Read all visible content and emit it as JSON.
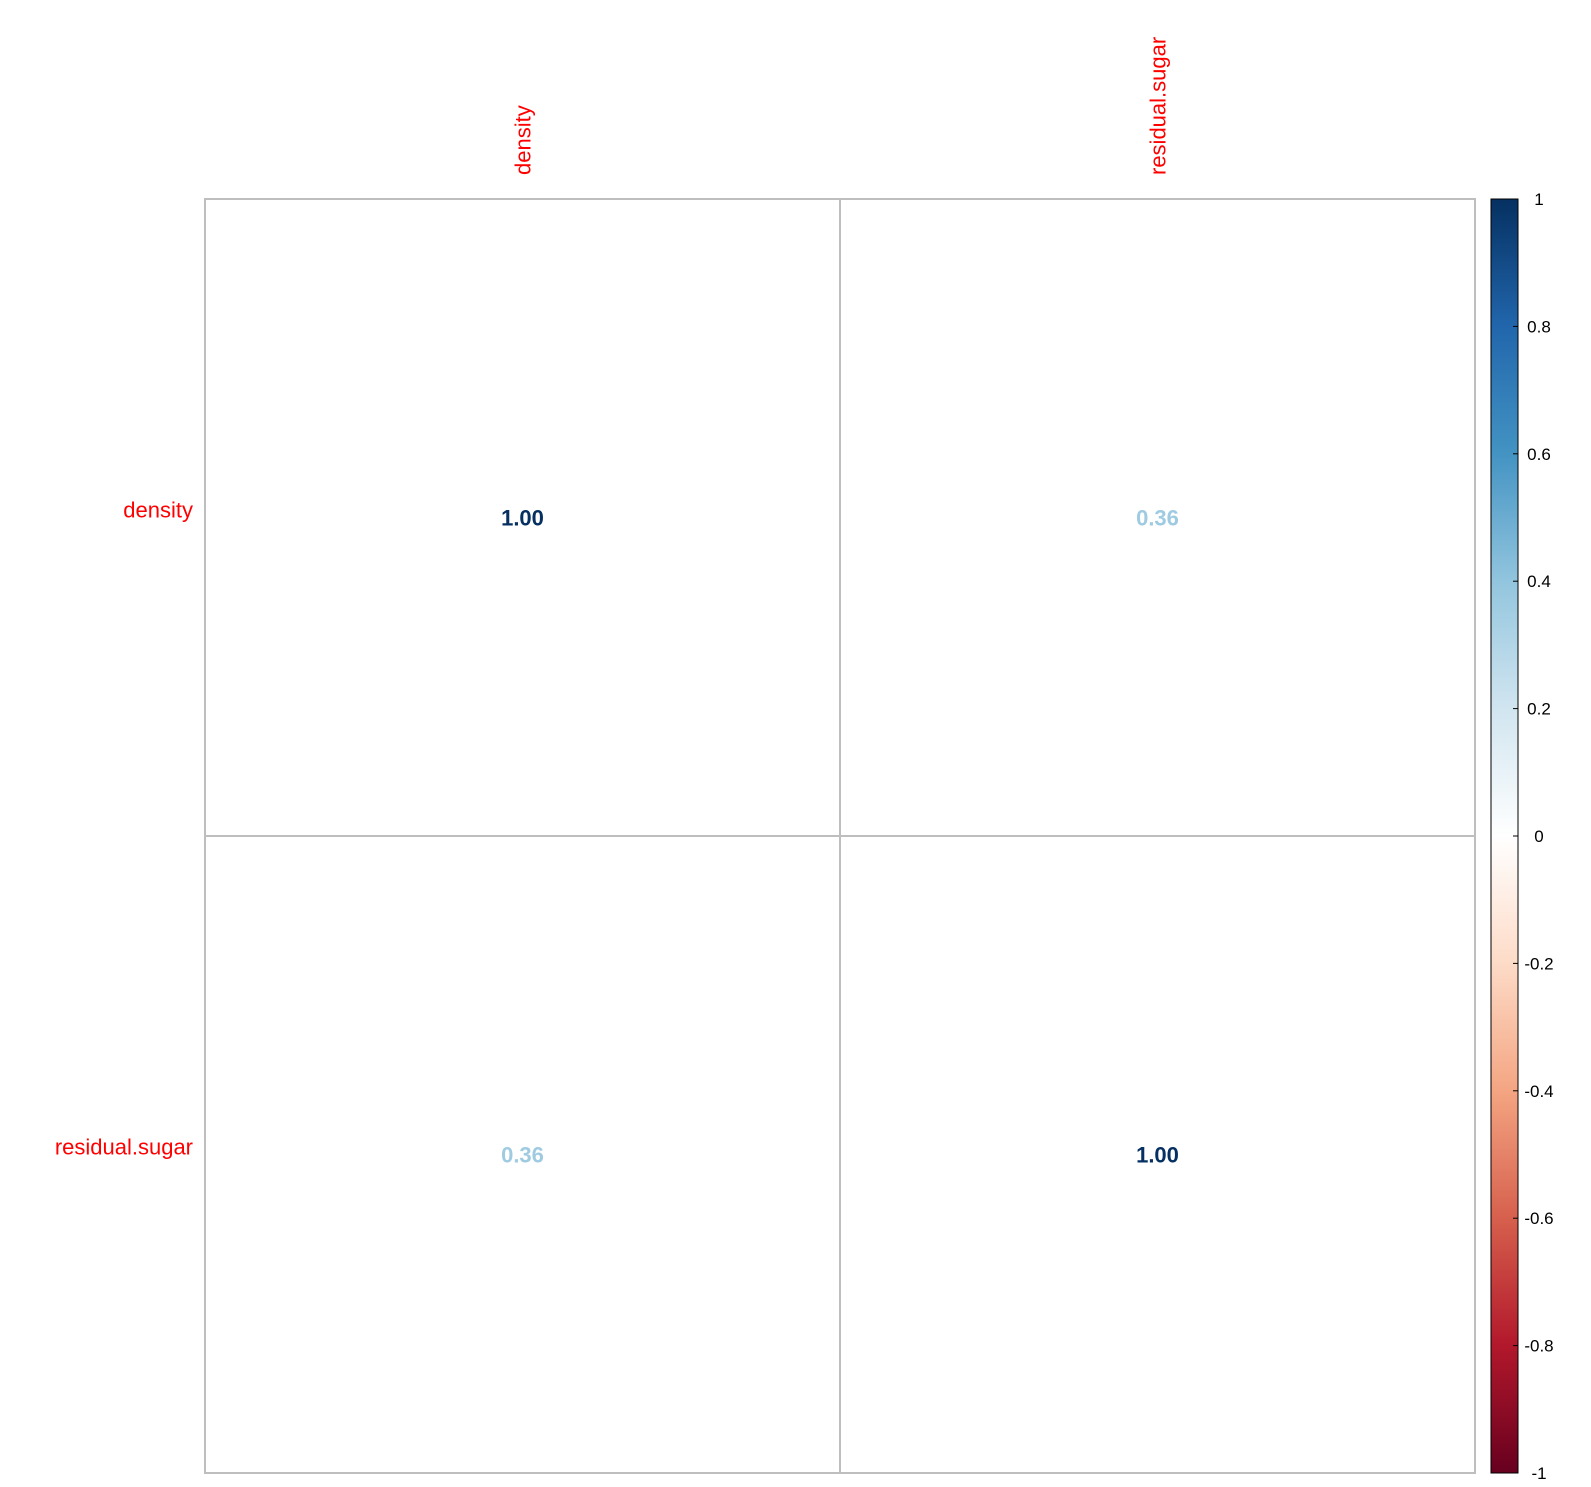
{
  "chart_data": {
    "type": "heatmap",
    "variables": [
      "density",
      "residual.sugar"
    ],
    "matrix": [
      [
        1.0,
        0.36
      ],
      [
        0.36,
        1.0
      ]
    ],
    "cell_labels": [
      [
        "1.00",
        "0.36"
      ],
      [
        "0.36",
        "1.00"
      ]
    ],
    "label_color": "#ff0000",
    "grid_color": "#bebebe",
    "colorbar": {
      "range": [
        -1,
        1
      ],
      "ticks": [
        "1",
        "0.8",
        "0.6",
        "0.4",
        "0.2",
        "0",
        "-0.2",
        "-0.4",
        "-0.6",
        "-0.8",
        "-1"
      ],
      "tick_values": [
        1,
        0.8,
        0.6,
        0.4,
        0.2,
        0,
        -0.2,
        -0.4,
        -0.6,
        -0.8,
        -1
      ],
      "palette": [
        "#67001f",
        "#b2182b",
        "#d6604d",
        "#f4a582",
        "#fddbc7",
        "#ffffff",
        "#d1e5f0",
        "#92c5de",
        "#4393c3",
        "#2166ac",
        "#053061"
      ]
    },
    "legend_position": "right"
  }
}
